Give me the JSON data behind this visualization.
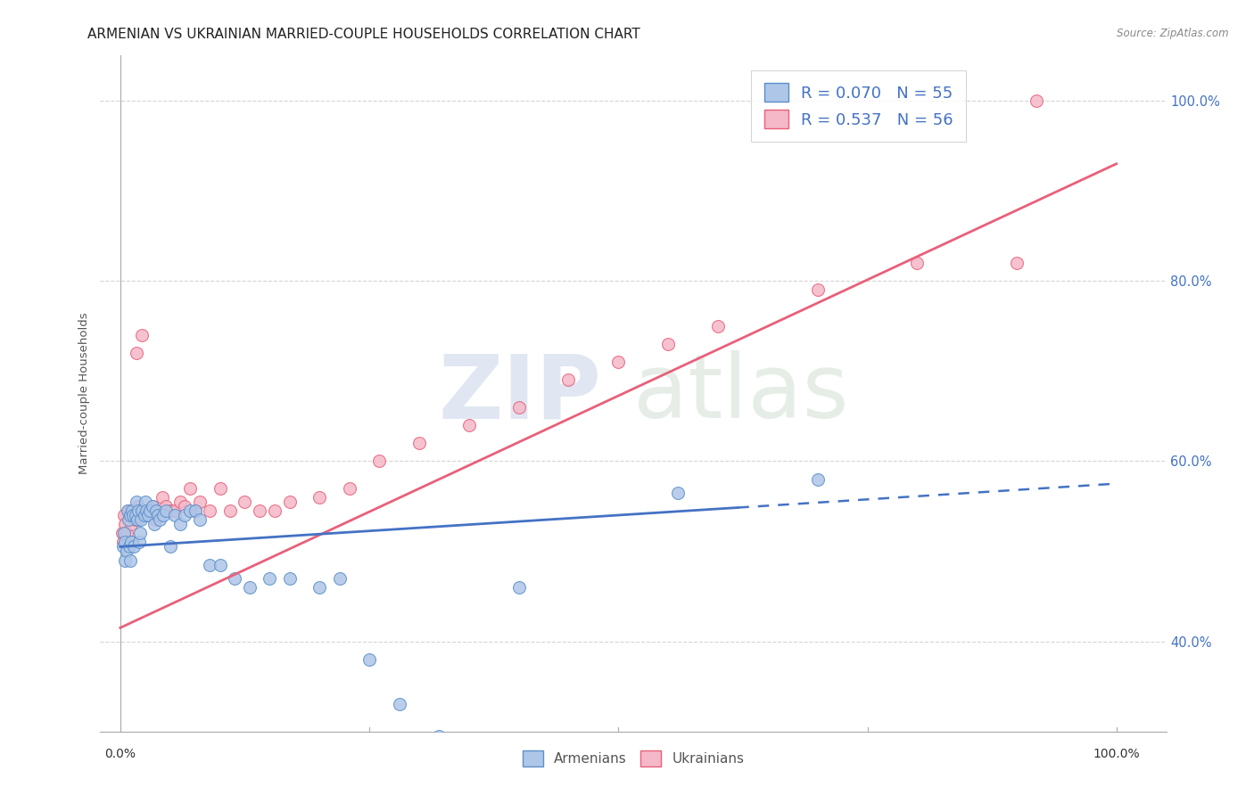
{
  "title": "ARMENIAN VS UKRAINIAN MARRIED-COUPLE HOUSEHOLDS CORRELATION CHART",
  "source": "Source: ZipAtlas.com",
  "ylabel": "Married-couple Households",
  "watermark_zip": "ZIP",
  "watermark_atlas": "atlas",
  "armenian_R": 0.07,
  "armenian_N": 55,
  "ukrainian_R": 0.537,
  "ukrainian_N": 56,
  "armenian_color": "#aec6e8",
  "armenian_edge_color": "#5b8fc9",
  "ukrainian_color": "#f5b8c8",
  "ukrainian_edge_color": "#e8607a",
  "armenian_line_color": "#4472c4",
  "ukrainian_line_color": "#e8607a",
  "legend_text_color": "#4472c4",
  "ytick_color": "#4472c4",
  "background_color": "#ffffff",
  "grid_color": "#d5d5d5",
  "title_fontsize": 11,
  "legend_fontsize": 13,
  "marker_size": 100,
  "ylim_low": 0.3,
  "ylim_high": 1.05,
  "xlim_low": -0.02,
  "xlim_high": 1.05,
  "yticks": [
    0.4,
    0.6,
    0.8,
    1.0
  ],
  "ytick_labels": [
    "40.0%",
    "60.0%",
    "80.0%",
    "100.0%"
  ],
  "arm_line_x0": 0.0,
  "arm_line_x1": 1.0,
  "arm_line_y0": 0.505,
  "arm_line_y1": 0.575,
  "ukr_line_x0": 0.0,
  "ukr_line_x1": 1.0,
  "ukr_line_y0": 0.415,
  "ukr_line_y1": 0.93,
  "arm_scatter_x": [
    0.003,
    0.004,
    0.005,
    0.005,
    0.006,
    0.007,
    0.008,
    0.009,
    0.01,
    0.01,
    0.011,
    0.012,
    0.013,
    0.014,
    0.015,
    0.016,
    0.017,
    0.018,
    0.019,
    0.02,
    0.021,
    0.022,
    0.024,
    0.025,
    0.026,
    0.028,
    0.03,
    0.032,
    0.034,
    0.036,
    0.038,
    0.04,
    0.043,
    0.046,
    0.05,
    0.055,
    0.06,
    0.065,
    0.07,
    0.075,
    0.08,
    0.09,
    0.1,
    0.115,
    0.13,
    0.15,
    0.17,
    0.2,
    0.22,
    0.25,
    0.28,
    0.32,
    0.4,
    0.56,
    0.7
  ],
  "arm_scatter_y": [
    0.505,
    0.52,
    0.51,
    0.49,
    0.5,
    0.545,
    0.535,
    0.505,
    0.54,
    0.49,
    0.51,
    0.545,
    0.54,
    0.505,
    0.54,
    0.555,
    0.535,
    0.545,
    0.51,
    0.52,
    0.535,
    0.545,
    0.54,
    0.555,
    0.545,
    0.54,
    0.545,
    0.55,
    0.53,
    0.545,
    0.54,
    0.535,
    0.54,
    0.545,
    0.505,
    0.54,
    0.53,
    0.54,
    0.545,
    0.545,
    0.535,
    0.485,
    0.485,
    0.47,
    0.46,
    0.47,
    0.47,
    0.46,
    0.47,
    0.38,
    0.33,
    0.295,
    0.46,
    0.565,
    0.58
  ],
  "ukr_scatter_x": [
    0.002,
    0.003,
    0.004,
    0.005,
    0.006,
    0.007,
    0.008,
    0.009,
    0.01,
    0.011,
    0.012,
    0.013,
    0.014,
    0.015,
    0.016,
    0.017,
    0.018,
    0.02,
    0.022,
    0.024,
    0.026,
    0.028,
    0.03,
    0.032,
    0.035,
    0.038,
    0.042,
    0.046,
    0.05,
    0.055,
    0.06,
    0.065,
    0.07,
    0.075,
    0.08,
    0.09,
    0.1,
    0.11,
    0.125,
    0.14,
    0.155,
    0.17,
    0.2,
    0.23,
    0.26,
    0.3,
    0.35,
    0.4,
    0.45,
    0.5,
    0.55,
    0.6,
    0.7,
    0.8,
    0.9,
    0.92
  ],
  "ukr_scatter_y": [
    0.52,
    0.51,
    0.54,
    0.53,
    0.52,
    0.51,
    0.545,
    0.54,
    0.545,
    0.53,
    0.51,
    0.54,
    0.545,
    0.535,
    0.72,
    0.54,
    0.55,
    0.545,
    0.74,
    0.54,
    0.545,
    0.54,
    0.545,
    0.55,
    0.535,
    0.54,
    0.56,
    0.55,
    0.545,
    0.545,
    0.555,
    0.55,
    0.57,
    0.545,
    0.555,
    0.545,
    0.57,
    0.545,
    0.555,
    0.545,
    0.545,
    0.555,
    0.56,
    0.57,
    0.6,
    0.62,
    0.64,
    0.66,
    0.69,
    0.71,
    0.73,
    0.75,
    0.79,
    0.82,
    0.82,
    1.0
  ]
}
